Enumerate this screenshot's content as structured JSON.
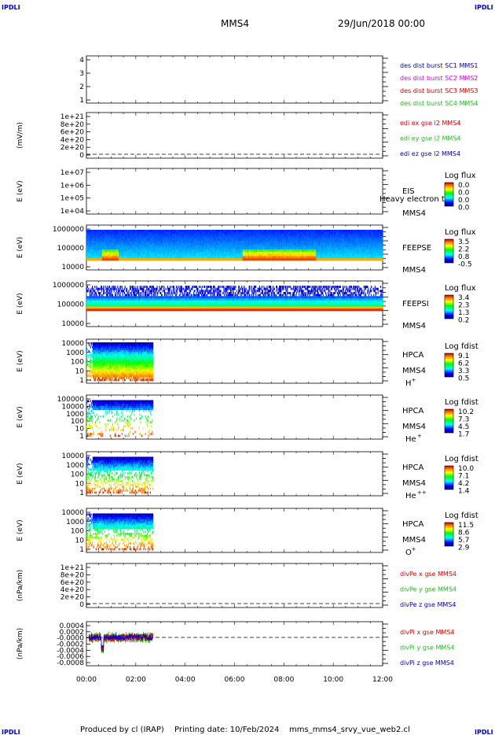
{
  "header": {
    "corner_label": "IPDLI",
    "title": "MMS4",
    "date": "29/Jun/2018 00:00"
  },
  "footer": {
    "produced_by": "Produced by cl (IRAP)",
    "printing_date": "Printing date: 10/Feb/2024",
    "file": "mms_mms4_srvy_vue_web2.cl"
  },
  "colors": {
    "blue": "#0000cc",
    "magenta": "#dd00dd",
    "red": "#dd0000",
    "green": "#22bb22",
    "black": "#000000"
  },
  "chart_data": [
    {
      "id": "burst",
      "type": "line",
      "title": "",
      "xlabel": "",
      "ylabel": "",
      "yticks": [
        "4",
        "3",
        "2",
        "1"
      ],
      "legend": [
        {
          "text": "des dist burst SC1 MMS1",
          "color": "#0000cc"
        },
        {
          "text": "des dist burst SC2 MMS2",
          "color": "#dd00dd"
        },
        {
          "text": "des dist burst SC3 MMS3",
          "color": "#dd0000"
        },
        {
          "text": "des dist burst SC4 MMS4",
          "color": "#22bb22"
        }
      ]
    },
    {
      "id": "edi",
      "type": "line",
      "ylabel": "(mV/m)",
      "yticks": [
        "1e+21",
        "8e+20",
        "6e+20",
        "4e+20",
        "2e+20",
        "0"
      ],
      "zero_line": true,
      "legend": [
        {
          "text": "edi ex gse l2 MMS4",
          "color": "#dd0000"
        },
        {
          "text": "edi ey gse l2 MMS4",
          "color": "#22bb22"
        },
        {
          "text": "edi ez gse l2 MMS4",
          "color": "#0000cc"
        }
      ]
    },
    {
      "id": "eis",
      "type": "heatmap",
      "ylabel": "E (eV)",
      "yticks": [
        "1e+07",
        "1e+06",
        "1e+05",
        "1e+04"
      ],
      "labels": [
        "EIS",
        "MMS4"
      ],
      "overlay_text": "Heavy electron to",
      "colorbar": {
        "title": "Log flux",
        "ticks": [
          "0.0",
          "0.0",
          "0.0",
          "0.0"
        ]
      }
    },
    {
      "id": "feepse",
      "type": "heatmap",
      "ylabel": "E (eV)",
      "yticks": [
        "1000000",
        "100000",
        "10000"
      ],
      "labels": [
        "FEEPSE",
        "MMS4"
      ],
      "colorbar": {
        "title": "Log flux",
        "ticks": [
          "3.5",
          "2.2",
          "0.8",
          "-0.5"
        ]
      }
    },
    {
      "id": "feepsi",
      "type": "heatmap",
      "ylabel": "E (eV)",
      "yticks": [
        "1000000",
        "100000",
        "10000"
      ],
      "labels": [
        "FEEPSI",
        "MMS4"
      ],
      "colorbar": {
        "title": "Log flux",
        "ticks": [
          "3.4",
          "2.3",
          "1.3",
          "0.2"
        ]
      }
    },
    {
      "id": "hpca_h",
      "type": "heatmap",
      "ylabel": "E (eV)",
      "yticks": [
        "10000",
        "1000",
        "100",
        "10",
        "1"
      ],
      "labels": [
        "HPCA",
        "MMS4"
      ],
      "species": "H",
      "species_sup": "+",
      "colorbar": {
        "title": "Log fdist",
        "ticks": [
          "9.1",
          "6.2",
          "3.3",
          "0.5"
        ]
      }
    },
    {
      "id": "hpca_he",
      "type": "heatmap",
      "ylabel": "E (eV)",
      "yticks": [
        "100000",
        "10000",
        "1000",
        "100",
        "10",
        "1"
      ],
      "labels": [
        "HPCA",
        "MMS4"
      ],
      "species": "He",
      "species_sup": "+",
      "colorbar": {
        "title": "Log fdist",
        "ticks": [
          "10.2",
          "7.3",
          "4.5",
          "1.7"
        ]
      }
    },
    {
      "id": "hpca_hepp",
      "type": "heatmap",
      "ylabel": "E (eV)",
      "yticks": [
        "10000",
        "1000",
        "100",
        "10",
        "1"
      ],
      "labels": [
        "HPCA",
        "MMS4"
      ],
      "species": "He",
      "species_sup": "++",
      "colorbar": {
        "title": "Log fdist",
        "ticks": [
          "10.0",
          "7.1",
          "4.2",
          "1.4"
        ]
      }
    },
    {
      "id": "hpca_o",
      "type": "heatmap",
      "ylabel": "E (eV)",
      "yticks": [
        "10000",
        "1000",
        "100",
        "10",
        "1"
      ],
      "labels": [
        "HPCA",
        "MMS4"
      ],
      "species": "O",
      "species_sup": "+",
      "colorbar": {
        "title": "Log fdist",
        "ticks": [
          "11.5",
          "8.6",
          "5.7",
          "2.9"
        ]
      }
    },
    {
      "id": "divpe",
      "type": "line",
      "ylabel": "(nPa/km)",
      "yticks": [
        "1e+21",
        "8e+20",
        "6e+20",
        "4e+20",
        "2e+20",
        "0"
      ],
      "zero_line": true,
      "legend": [
        {
          "text": "divPe x gse MMS4",
          "color": "#dd0000"
        },
        {
          "text": "divPe y gse MMS4",
          "color": "#22bb22"
        },
        {
          "text": "divPe z gse MMS4",
          "color": "#0000cc"
        }
      ]
    },
    {
      "id": "divpi",
      "type": "line",
      "ylabel": "(nPa/km)",
      "yticks": [
        "0.0004",
        "0.0002",
        "-0.0000",
        "-0.0002",
        "-0.0004",
        "-0.0006",
        "-0.0008"
      ],
      "zero_line": true,
      "legend": [
        {
          "text": "divPi x gse MMS4",
          "color": "#dd0000"
        },
        {
          "text": "divPi y gse MMS4",
          "color": "#22bb22"
        },
        {
          "text": "divPi z gse MMS4",
          "color": "#0000cc"
        }
      ]
    }
  ],
  "x_axis": {
    "ticks": [
      "00:00",
      "02:00",
      "04:00",
      "06:00",
      "08:00",
      "10:00",
      "12:00"
    ],
    "range_hours": [
      0,
      12
    ]
  }
}
